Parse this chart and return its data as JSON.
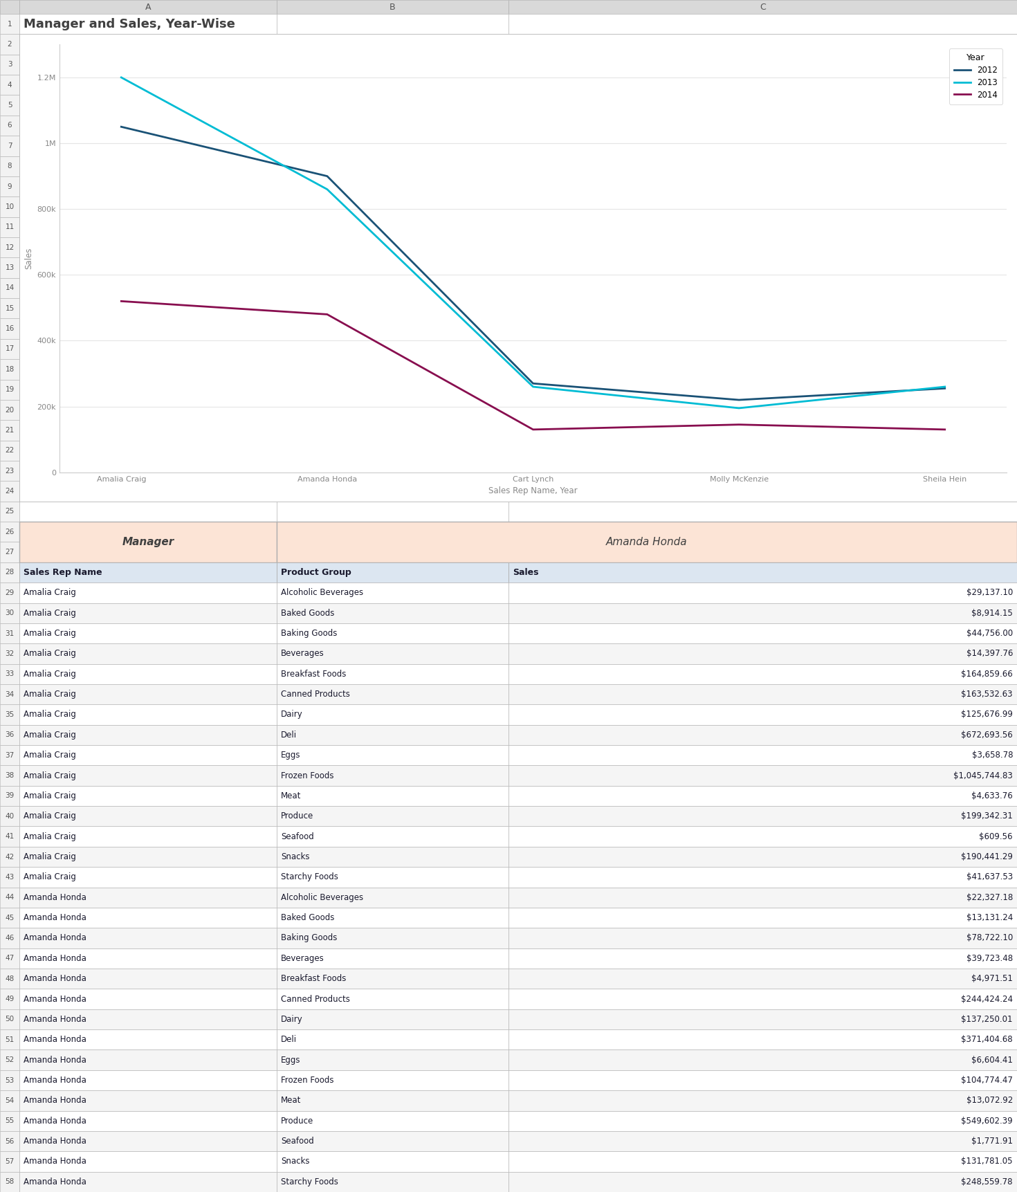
{
  "title": "Manager and Sales, Year-Wise",
  "chart": {
    "managers": [
      "Amalia Craig",
      "Amanda Honda",
      "Cart Lynch",
      "Molly McKenzie",
      "Sheila Hein"
    ],
    "series": {
      "2012": [
        1050000,
        900000,
        270000,
        220000,
        255000
      ],
      "2013": [
        1200000,
        860000,
        260000,
        195000,
        260000
      ],
      "2014": [
        520000,
        480000,
        130000,
        145000,
        130000
      ]
    },
    "colors": {
      "2012": "#1a5276",
      "2013": "#00bcd4",
      "2014": "#880e4f"
    },
    "xlabel": "Sales Rep Name, Year",
    "ylabel": "Sales",
    "ylim": [
      0,
      1300000
    ],
    "yticks": [
      0,
      200000,
      400000,
      600000,
      800000,
      1000000,
      1200000
    ],
    "ytick_labels": [
      "0",
      "200k",
      "400k",
      "600k",
      "800k",
      "1M",
      "1.2M"
    ]
  },
  "filter_row": {
    "col1": "Manager",
    "col2": "Amanda Honda",
    "bg_color": "#fce4d6"
  },
  "table_header": {
    "col1": "Sales Rep Name",
    "col2": "Product Group",
    "col3": "Sales",
    "bg_color": "#dce6f1"
  },
  "table_rows": [
    [
      "Amalia Craig",
      "Alcoholic Beverages",
      "$29,137.10"
    ],
    [
      "Amalia Craig",
      "Baked Goods",
      "$8,914.15"
    ],
    [
      "Amalia Craig",
      "Baking Goods",
      "$44,756.00"
    ],
    [
      "Amalia Craig",
      "Beverages",
      "$14,397.76"
    ],
    [
      "Amalia Craig",
      "Breakfast Foods",
      "$164,859.66"
    ],
    [
      "Amalia Craig",
      "Canned Products",
      "$163,532.63"
    ],
    [
      "Amalia Craig",
      "Dairy",
      "$125,676.99"
    ],
    [
      "Amalia Craig",
      "Deli",
      "$672,693.56"
    ],
    [
      "Amalia Craig",
      "Eggs",
      "$3,658.78"
    ],
    [
      "Amalia Craig",
      "Frozen Foods",
      "$1,045,744.83"
    ],
    [
      "Amalia Craig",
      "Meat",
      "$4,633.76"
    ],
    [
      "Amalia Craig",
      "Produce",
      "$199,342.31"
    ],
    [
      "Amalia Craig",
      "Seafood",
      "$609.56"
    ],
    [
      "Amalia Craig",
      "Snacks",
      "$190,441.29"
    ],
    [
      "Amalia Craig",
      "Starchy Foods",
      "$41,637.53"
    ],
    [
      "Amanda Honda",
      "Alcoholic Beverages",
      "$22,327.18"
    ],
    [
      "Amanda Honda",
      "Baked Goods",
      "$13,131.24"
    ],
    [
      "Amanda Honda",
      "Baking Goods",
      "$78,722.10"
    ],
    [
      "Amanda Honda",
      "Beverages",
      "$39,723.48"
    ],
    [
      "Amanda Honda",
      "Breakfast Foods",
      "$4,971.51"
    ],
    [
      "Amanda Honda",
      "Canned Products",
      "$244,424.24"
    ],
    [
      "Amanda Honda",
      "Dairy",
      "$137,250.01"
    ],
    [
      "Amanda Honda",
      "Deli",
      "$371,404.68"
    ],
    [
      "Amanda Honda",
      "Eggs",
      "$6,604.41"
    ],
    [
      "Amanda Honda",
      "Frozen Foods",
      "$104,774.47"
    ],
    [
      "Amanda Honda",
      "Meat",
      "$13,072.92"
    ],
    [
      "Amanda Honda",
      "Produce",
      "$549,602.39"
    ],
    [
      "Amanda Honda",
      "Seafood",
      "$1,771.91"
    ],
    [
      "Amanda Honda",
      "Snacks",
      "$131,781.05"
    ],
    [
      "Amanda Honda",
      "Starchy Foods",
      "$248,559.78"
    ]
  ],
  "row_colors": {
    "even": "#ffffff",
    "odd": "#f5f5f5"
  },
  "excel_header_color": "#d9d9d9",
  "excel_row_num_color": "#f2f2f2",
  "excel_border_color": "#b0b0b0",
  "legend_title": "Year"
}
